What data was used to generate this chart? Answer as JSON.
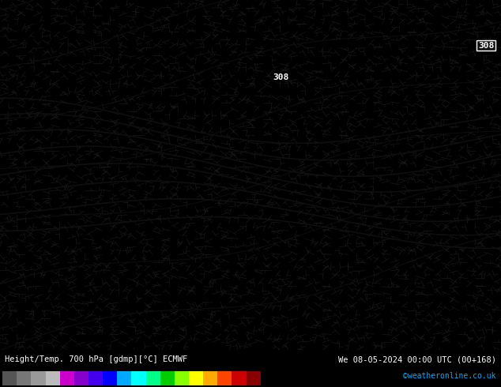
{
  "title_left": "Height/Temp. 700 hPa [gdmp][°C] ECMWF",
  "title_right": "We 08-05-2024 00:00 UTC (00+168)",
  "credit": "©weatheronline.co.uk",
  "bg_color": "#00cc00",
  "colorbar_levels": [
    -54,
    -48,
    -42,
    -36,
    -30,
    -24,
    -18,
    -12,
    -6,
    0,
    6,
    12,
    18,
    24,
    30,
    36,
    42,
    48,
    54
  ],
  "colorbar_colors": [
    "#555555",
    "#777777",
    "#999999",
    "#bbbbbb",
    "#cc00cc",
    "#8800cc",
    "#4400ee",
    "#0000ff",
    "#00aaff",
    "#00ffff",
    "#00ff88",
    "#00cc00",
    "#88ff00",
    "#ffff00",
    "#ffaa00",
    "#ff4400",
    "#cc0000",
    "#880000"
  ],
  "bottom_bar_height": 0.095,
  "label_color": "#00ff00",
  "contour_label": "308",
  "wind_color": "#000000",
  "grid_color": "#000000",
  "main_bg": "#00bb00"
}
